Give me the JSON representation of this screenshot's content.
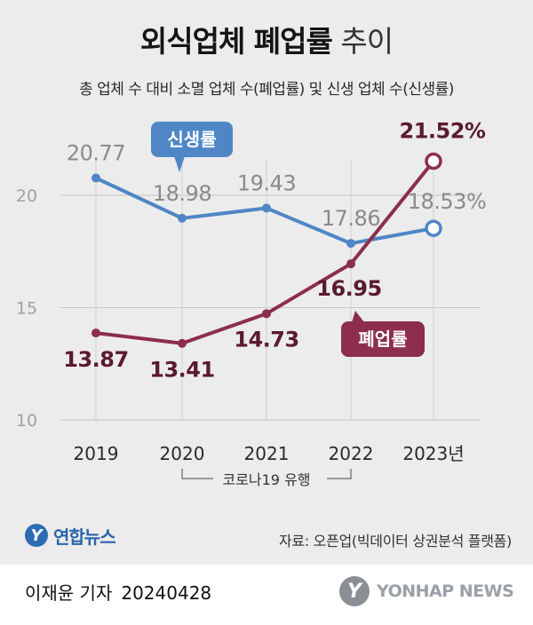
{
  "header": {
    "title_bold": "외식업체 폐업률",
    "title_light": " 추이",
    "subtitle": "총 업체 수 대비 소멸 업체 수(폐업률) 및 신생 업체 수(신생률)"
  },
  "chart_data": {
    "type": "line",
    "categories": [
      "2019",
      "2020",
      "2021",
      "2022",
      "2023년"
    ],
    "ylim": [
      10,
      22
    ],
    "yticks": [
      10,
      15,
      20
    ],
    "ytick_labels": [
      "10",
      "15",
      "20"
    ],
    "series": [
      {
        "name": "신생률",
        "color": "#4f86c6",
        "values": [
          20.77,
          18.98,
          19.43,
          17.86,
          18.53
        ],
        "labels": [
          "20.77",
          "18.98",
          "19.43",
          "17.86",
          "18.53%"
        ],
        "label_color": "#8a8a8a"
      },
      {
        "name": "폐업률",
        "color": "#8c2e4c",
        "values": [
          13.87,
          13.41,
          14.73,
          16.95,
          21.52
        ],
        "labels": [
          "13.87",
          "13.41",
          "14.73",
          "16.95",
          "21.52%"
        ],
        "label_color": "#5a1a30"
      }
    ],
    "annotation": "코로나19 유행"
  },
  "footer": {
    "source": "자료: 오픈업(빅데이터 상권분석 플랫폼)",
    "logo_mark": "Y",
    "logo_text": "연합뉴스",
    "reporter": "이재윤 기자",
    "date": "20240428",
    "watermark_text": "YONHAP NEWS"
  }
}
